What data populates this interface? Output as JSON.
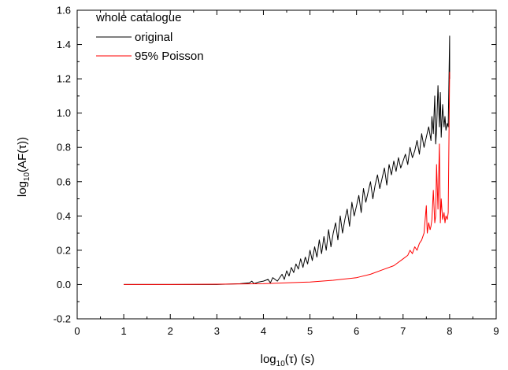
{
  "chart_data": {
    "type": "line",
    "title": "",
    "xlabel": {
      "base": "log",
      "sub": "10",
      "rest": "(τ) (s)"
    },
    "ylabel": {
      "base": "log",
      "sub": "10",
      "rest": "(AF(τ))"
    },
    "xlim": [
      0,
      9
    ],
    "ylim": [
      -0.2,
      1.6
    ],
    "x_ticks": [
      0,
      1,
      2,
      3,
      4,
      5,
      6,
      7,
      8,
      9
    ],
    "x_tick_labels": [
      "0",
      "1",
      "2",
      "3",
      "4",
      "5",
      "6",
      "7",
      "8",
      "9"
    ],
    "y_ticks": [
      -0.2,
      0.0,
      0.2,
      0.4,
      0.6,
      0.8,
      1.0,
      1.2,
      1.4,
      1.6
    ],
    "y_tick_labels": [
      "-0.2",
      "0.0",
      "0.2",
      "0.4",
      "0.6",
      "0.8",
      "1.0",
      "1.2",
      "1.4",
      "1.6"
    ],
    "grid": false,
    "legend": {
      "title": "whole catalogue",
      "placement": "top-left"
    },
    "series": [
      {
        "name": "original",
        "color": "#000000",
        "x": [
          1.0,
          2.0,
          3.0,
          3.5,
          3.7,
          3.75,
          3.8,
          3.9,
          4.0,
          4.1,
          4.15,
          4.2,
          4.3,
          4.4,
          4.45,
          4.5,
          4.55,
          4.6,
          4.65,
          4.7,
          4.75,
          4.8,
          4.85,
          4.9,
          4.95,
          5.0,
          5.05,
          5.1,
          5.15,
          5.2,
          5.25,
          5.3,
          5.35,
          5.4,
          5.45,
          5.5,
          5.55,
          5.6,
          5.65,
          5.7,
          5.75,
          5.8,
          5.85,
          5.9,
          5.95,
          6.0,
          6.05,
          6.1,
          6.15,
          6.2,
          6.25,
          6.3,
          6.35,
          6.4,
          6.45,
          6.5,
          6.55,
          6.6,
          6.65,
          6.7,
          6.75,
          6.8,
          6.85,
          6.9,
          6.95,
          7.0,
          7.05,
          7.1,
          7.15,
          7.2,
          7.25,
          7.3,
          7.35,
          7.4,
          7.45,
          7.5,
          7.55,
          7.6,
          7.62,
          7.65,
          7.68,
          7.7,
          7.72,
          7.75,
          7.78,
          7.8,
          7.82,
          7.85,
          7.88,
          7.9,
          7.92,
          7.95,
          7.97,
          8.0,
          8.0
        ],
        "y": [
          0.0,
          0.0,
          0.0,
          0.005,
          0.01,
          0.02,
          0.005,
          0.015,
          0.02,
          0.03,
          0.01,
          0.04,
          0.02,
          0.06,
          0.03,
          0.08,
          0.05,
          0.1,
          0.07,
          0.12,
          0.09,
          0.15,
          0.1,
          0.16,
          0.12,
          0.2,
          0.14,
          0.22,
          0.16,
          0.26,
          0.18,
          0.28,
          0.2,
          0.32,
          0.22,
          0.3,
          0.36,
          0.26,
          0.4,
          0.3,
          0.38,
          0.44,
          0.34,
          0.48,
          0.4,
          0.46,
          0.52,
          0.42,
          0.56,
          0.48,
          0.54,
          0.6,
          0.5,
          0.58,
          0.64,
          0.56,
          0.62,
          0.68,
          0.58,
          0.7,
          0.64,
          0.72,
          0.66,
          0.74,
          0.68,
          0.72,
          0.76,
          0.7,
          0.8,
          0.74,
          0.78,
          0.84,
          0.76,
          0.88,
          0.8,
          0.86,
          0.92,
          0.84,
          0.98,
          0.88,
          1.1,
          0.82,
          0.9,
          1.16,
          0.92,
          1.12,
          0.86,
          1.05,
          0.92,
          0.98,
          0.9,
          0.94,
          0.92,
          1.45,
          1.2
        ]
      },
      {
        "name": "95% Poisson",
        "color": "#ff0000",
        "x": [
          1.0,
          2.0,
          3.0,
          4.0,
          4.5,
          5.0,
          5.5,
          6.0,
          6.3,
          6.6,
          6.8,
          7.0,
          7.1,
          7.15,
          7.2,
          7.25,
          7.3,
          7.35,
          7.4,
          7.45,
          7.5,
          7.52,
          7.55,
          7.58,
          7.6,
          7.62,
          7.65,
          7.68,
          7.7,
          7.72,
          7.75,
          7.78,
          7.8,
          7.82,
          7.85,
          7.88,
          7.9,
          7.92,
          7.95,
          7.97,
          8.0
        ],
        "y": [
          0.0,
          0.0,
          0.002,
          0.005,
          0.01,
          0.015,
          0.025,
          0.04,
          0.06,
          0.09,
          0.11,
          0.15,
          0.17,
          0.2,
          0.18,
          0.22,
          0.2,
          0.24,
          0.26,
          0.3,
          0.46,
          0.3,
          0.36,
          0.32,
          0.34,
          0.38,
          0.55,
          0.36,
          0.4,
          0.7,
          0.44,
          0.82,
          0.36,
          0.5,
          0.38,
          0.42,
          0.36,
          0.4,
          0.38,
          0.42,
          1.24
        ]
      }
    ]
  }
}
